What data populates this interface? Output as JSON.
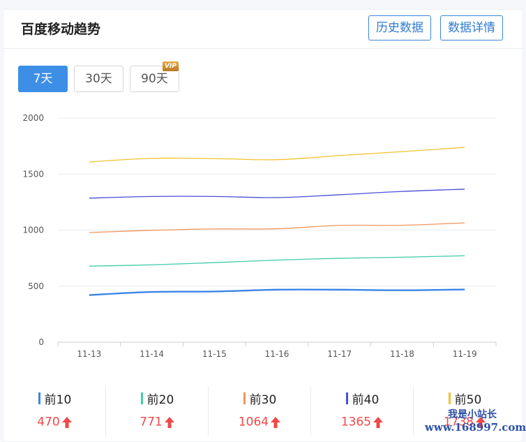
{
  "header": {
    "title": "百度移动趋势",
    "history_label": "历史数据",
    "detail_label": "数据详情"
  },
  "ranges": {
    "r7": "7天",
    "r30": "30天",
    "r90": "90天",
    "vip": "VIP",
    "active": "7天"
  },
  "chart_data": {
    "type": "line",
    "title": "",
    "xlabel": "",
    "ylabel": "",
    "x": [
      "11-13",
      "11-14",
      "11-15",
      "11-16",
      "11-17",
      "11-18",
      "11-19"
    ],
    "ylim": [
      0,
      2000
    ],
    "yticks": [
      0,
      500,
      1000,
      1500,
      2000
    ],
    "grid": true,
    "series": [
      {
        "name": "前10",
        "color": "#3a86e6",
        "values": [
          420,
          448,
          452,
          468,
          468,
          463,
          470
        ]
      },
      {
        "name": "前20",
        "color": "#3fcca8",
        "values": [
          678,
          690,
          710,
          732,
          748,
          758,
          771
        ]
      },
      {
        "name": "前30",
        "color": "#f0955a",
        "values": [
          978,
          998,
          1010,
          1012,
          1042,
          1043,
          1064
        ]
      },
      {
        "name": "前40",
        "color": "#4a4ed8",
        "values": [
          1285,
          1300,
          1300,
          1290,
          1315,
          1345,
          1365
        ]
      },
      {
        "name": "前50",
        "color": "#f2c230",
        "values": [
          1608,
          1640,
          1638,
          1628,
          1665,
          1700,
          1738
        ]
      }
    ]
  },
  "legend": [
    {
      "name": "前10",
      "value": "470",
      "color": "#3a86e6"
    },
    {
      "name": "前20",
      "value": "771",
      "color": "#3fcca8"
    },
    {
      "name": "前30",
      "value": "1064",
      "color": "#f0955a"
    },
    {
      "name": "前40",
      "value": "1365",
      "color": "#4a4ed8"
    },
    {
      "name": "前50",
      "value": "1738",
      "color": "#f2c230"
    }
  ],
  "watermark": {
    "line1": "我是小站长",
    "line2": "www.168997.com"
  }
}
